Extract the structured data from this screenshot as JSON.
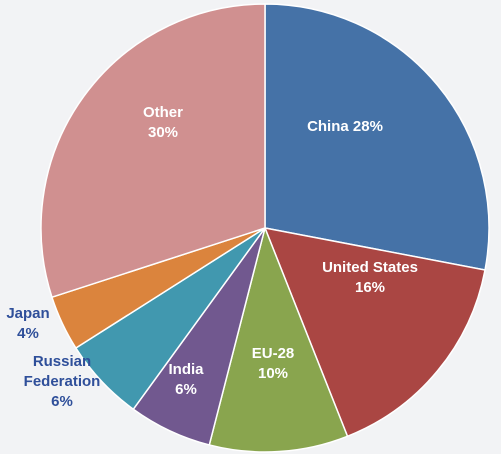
{
  "chart_data": {
    "type": "pie",
    "series": [
      {
        "name": "China",
        "value": 28,
        "color": "#4572A7",
        "label_lines": [
          "China 28%"
        ]
      },
      {
        "name": "United States",
        "value": 16,
        "color": "#AA4643",
        "label_lines": [
          "United States",
          "16%"
        ]
      },
      {
        "name": "EU-28",
        "value": 10,
        "color": "#89A54E",
        "label_lines": [
          "EU-28",
          "10%"
        ]
      },
      {
        "name": "India",
        "value": 6,
        "color": "#71588F",
        "label_lines": [
          "India",
          "6%"
        ]
      },
      {
        "name": "Russian Federation",
        "value": 6,
        "color": "#4198AF",
        "label_lines": [
          "Russian",
          "Federation",
          "6%"
        ]
      },
      {
        "name": "Japan",
        "value": 4,
        "color": "#DB843D",
        "label_lines": [
          "Japan",
          "4%"
        ]
      },
      {
        "name": "Other",
        "value": 30,
        "color": "#D09090",
        "label_lines": [
          "Other",
          "30%"
        ]
      }
    ],
    "start": "12 o'clock",
    "direction": "clockwise",
    "unit": "%"
  }
}
